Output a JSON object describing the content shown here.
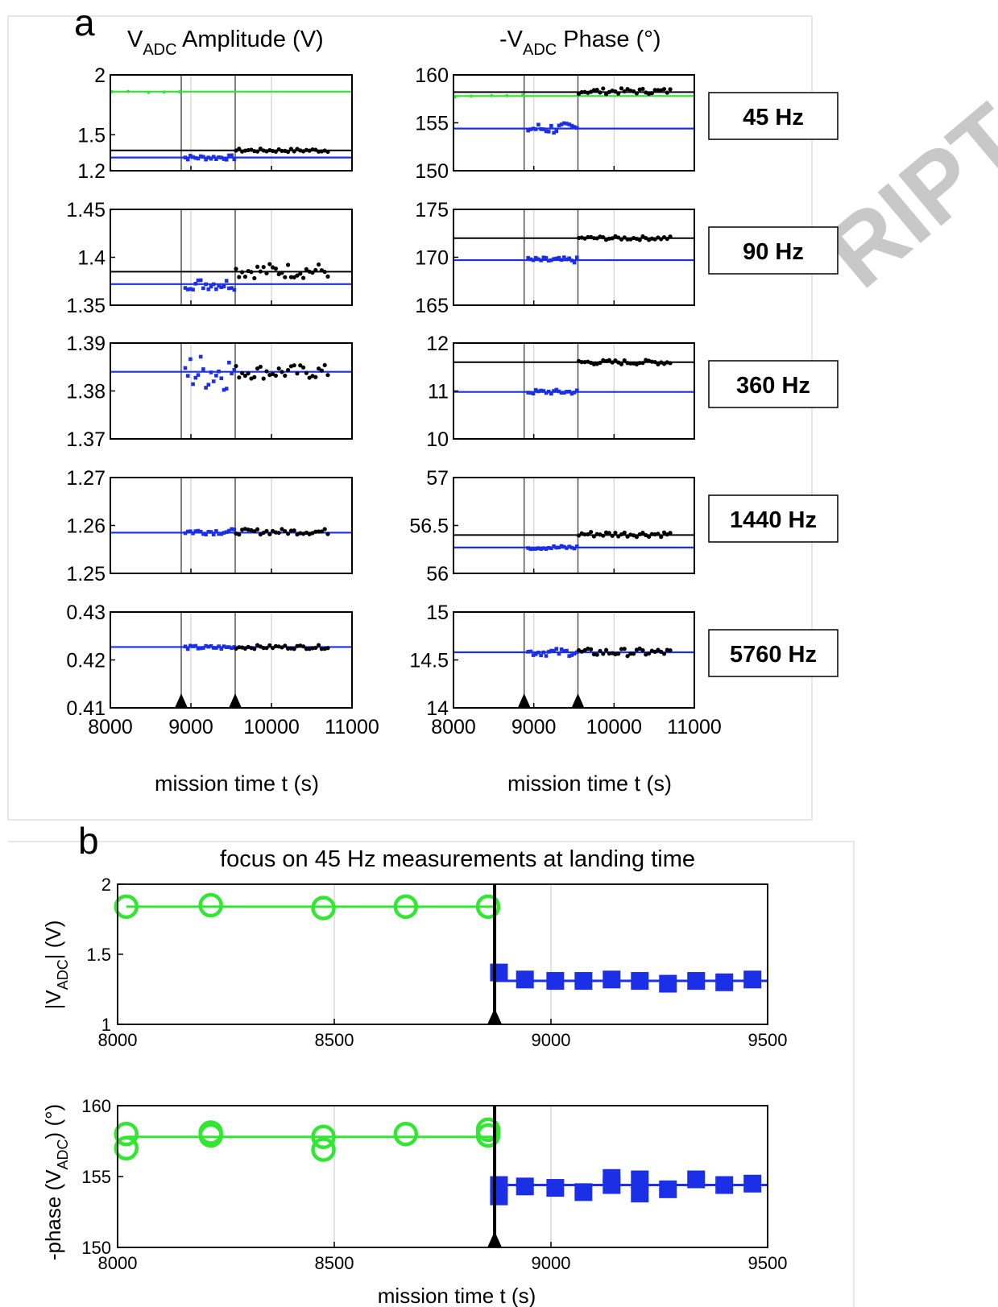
{
  "watermark": "RIPT",
  "panel_a": {
    "letter": "a",
    "left_title": {
      "main": "V",
      "sub": "ADC",
      "rest": " Amplitude (V)"
    },
    "right_title": {
      "pre": "-V",
      "sub": "ADC",
      "rest": " Phase (°)"
    },
    "xlabel": "mission time t (s)",
    "xticks": [
      "8000",
      "9000",
      "10000",
      "11000"
    ],
    "xlim": [
      8000,
      11000
    ],
    "markers": [
      8880,
      9550
    ],
    "rows": [
      {
        "freq_label": "45 Hz",
        "amp": {
          "ylim": [
            1.2,
            2.0
          ],
          "yticks": [
            {
              "v": 2.0,
              "t": "2"
            },
            {
              "v": 1.5,
              "t": "1.5"
            },
            {
              "v": 1.2,
              "t": "1.2"
            }
          ],
          "green_line": 1.86,
          "blue_line": 1.31,
          "black_line": 1.37,
          "green_pts": 1.86,
          "blue_mean": 1.31,
          "blue_noise": 0.02,
          "black_mean": 1.37,
          "black_noise": 0.015
        },
        "ph": {
          "ylim": [
            150,
            160
          ],
          "yticks": [
            {
              "v": 160,
              "t": "160"
            },
            {
              "v": 155,
              "t": "155"
            },
            {
              "v": 150,
              "t": "150"
            }
          ],
          "green_line": 157.8,
          "blue_line": 154.4,
          "black_line": 158.2,
          "green_pts": 157.8,
          "blue_mean": 154.4,
          "blue_noise": 0.6,
          "black_mean": 158.3,
          "black_noise": 0.3
        }
      },
      {
        "freq_label": "90 Hz",
        "amp": {
          "ylim": [
            1.35,
            1.45
          ],
          "yticks": [
            {
              "v": 1.45,
              "t": "1.45"
            },
            {
              "v": 1.4,
              "t": "1.4"
            },
            {
              "v": 1.35,
              "t": "1.35"
            }
          ],
          "blue_line": 1.372,
          "black_line": 1.385,
          "blue_mean": 1.372,
          "blue_noise": 0.006,
          "black_mean": 1.386,
          "black_noise": 0.008
        },
        "ph": {
          "ylim": [
            165,
            175
          ],
          "yticks": [
            {
              "v": 175,
              "t": "175"
            },
            {
              "v": 170,
              "t": "170"
            },
            {
              "v": 165,
              "t": "165"
            }
          ],
          "blue_line": 169.7,
          "black_line": 172.0,
          "blue_mean": 169.7,
          "blue_noise": 0.3,
          "black_mean": 172.0,
          "black_noise": 0.2
        }
      },
      {
        "freq_label": "360 Hz",
        "amp": {
          "ylim": [
            1.37,
            1.39
          ],
          "yticks": [
            {
              "v": 1.39,
              "t": "1.39"
            },
            {
              "v": 1.38,
              "t": "1.38"
            },
            {
              "v": 1.37,
              "t": "1.37"
            }
          ],
          "blue_line": 1.384,
          "blue_mean": 1.384,
          "blue_noise": 0.004,
          "black_mean": 1.384,
          "black_noise": 0.0015
        },
        "ph": {
          "ylim": [
            10,
            12
          ],
          "yticks": [
            {
              "v": 12,
              "t": "12"
            },
            {
              "v": 11,
              "t": "11"
            },
            {
              "v": 10,
              "t": "10"
            }
          ],
          "blue_line": 10.98,
          "black_line": 11.6,
          "blue_mean": 10.98,
          "blue_noise": 0.05,
          "black_mean": 11.6,
          "black_noise": 0.05
        }
      },
      {
        "freq_label": "1440 Hz",
        "amp": {
          "ylim": [
            1.25,
            1.27
          ],
          "yticks": [
            {
              "v": 1.27,
              "t": "1.27"
            },
            {
              "v": 1.26,
              "t": "1.26"
            },
            {
              "v": 1.25,
              "t": "1.25"
            }
          ],
          "blue_line": 1.2585,
          "blue_mean": 1.2587,
          "blue_noise": 0.0006,
          "black_mean": 1.2587,
          "black_noise": 0.0006
        },
        "ph": {
          "ylim": [
            56,
            57
          ],
          "yticks": [
            {
              "v": 57,
              "t": "57"
            },
            {
              "v": 56.5,
              "t": "56.5"
            },
            {
              "v": 56,
              "t": "56"
            }
          ],
          "blue_line": 56.27,
          "black_line": 56.4,
          "blue_mean": 56.27,
          "blue_noise": 0.02,
          "black_mean": 56.41,
          "black_noise": 0.03
        }
      },
      {
        "freq_label": "5760 Hz",
        "amp": {
          "ylim": [
            0.41,
            0.43
          ],
          "yticks": [
            {
              "v": 0.43,
              "t": "0.43"
            },
            {
              "v": 0.42,
              "t": "0.42"
            },
            {
              "v": 0.41,
              "t": "0.41"
            }
          ],
          "blue_line": 0.4227,
          "blue_mean": 0.4226,
          "blue_noise": 0.0004,
          "black_mean": 0.4227,
          "black_noise": 0.0004
        },
        "ph": {
          "ylim": [
            14,
            15
          ],
          "yticks": [
            {
              "v": 15,
              "t": "15"
            },
            {
              "v": 14.5,
              "t": "14.5"
            },
            {
              "v": 14,
              "t": "14"
            }
          ],
          "blue_line": 14.58,
          "blue_mean": 14.58,
          "blue_noise": 0.04,
          "black_mean": 14.58,
          "black_noise": 0.04
        }
      }
    ]
  },
  "panel_b": {
    "letter": "b",
    "title": "focus on 45 Hz measurements at landing time",
    "xlabel": "mission time t (s)",
    "xlim": [
      8000,
      9500
    ],
    "xticks": [
      "8000",
      "8500",
      "9000",
      "9500"
    ],
    "landing_time": 8870,
    "amp": {
      "ylabel": {
        "pre": "|V",
        "sub": "ADC",
        "rest": "|  (V)"
      },
      "ylim": [
        1,
        2
      ],
      "yticks": [
        {
          "v": 2,
          "t": "2"
        },
        {
          "v": 1.5,
          "t": "1.5"
        },
        {
          "v": 1,
          "t": "1"
        }
      ],
      "green_line": 1.84,
      "blue_line": 1.31,
      "green_x": [
        8020,
        8215,
        8475,
        8665,
        8855
      ],
      "green_y": [
        1.84,
        1.85,
        1.83,
        1.84,
        1.84
      ],
      "blue_x": [
        8880,
        8940,
        9010,
        9075,
        9140,
        9205,
        9270,
        9335,
        9400,
        9465
      ],
      "blue_y": [
        1.37,
        1.32,
        1.31,
        1.31,
        1.32,
        1.31,
        1.29,
        1.31,
        1.3,
        1.32
      ]
    },
    "phase": {
      "ylabel": {
        "pre": "-phase (V",
        "sub": "ADC",
        "rest": ")  (°)"
      },
      "ylim": [
        150,
        160
      ],
      "yticks": [
        {
          "v": 160,
          "t": "160"
        },
        {
          "v": 155,
          "t": "155"
        },
        {
          "v": 150,
          "t": "150"
        }
      ],
      "green_line": 157.8,
      "blue_line": 154.4,
      "green_x": [
        8020,
        8020,
        8215,
        8215,
        8475,
        8475,
        8665,
        8855,
        8855
      ],
      "green_y": [
        158.0,
        157.0,
        158.1,
        157.9,
        157.8,
        156.9,
        158.0,
        157.9,
        158.3
      ],
      "blue_x": [
        8880,
        8880,
        8940,
        9010,
        9075,
        9140,
        9140,
        9205,
        9205,
        9270,
        9335,
        9400,
        9465
      ],
      "blue_y": [
        154.4,
        153.6,
        154.3,
        154.2,
        153.9,
        154.9,
        154.4,
        154.8,
        153.8,
        154.1,
        154.8,
        154.4,
        154.5
      ]
    }
  },
  "colors": {
    "green": "#32e632",
    "blue": "#1b2fe6",
    "black": "#000000",
    "grid": "#d4d4d4"
  }
}
